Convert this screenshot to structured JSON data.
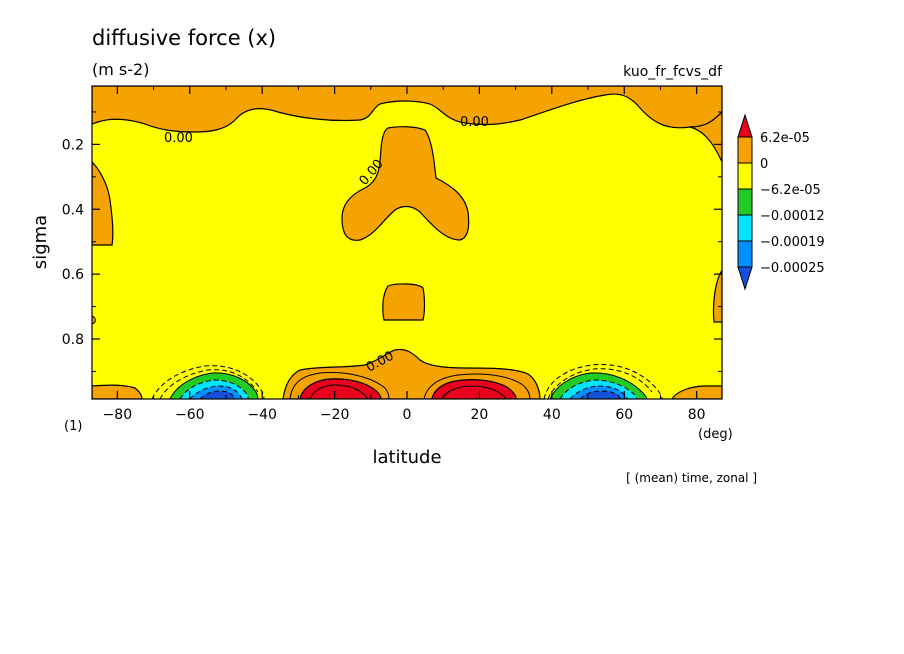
{
  "chart_data": {
    "type": "contour",
    "title": "diffusive force (x)",
    "units": "(m s-2)",
    "variable_id": "kuo_fr_fcvs_df",
    "xlabel": "latitude",
    "x_unit": "(deg)",
    "ylabel": "sigma",
    "panel_label": "(1)",
    "footer": "[ (mean) time, zonal ]",
    "xlim": [
      -87,
      87
    ],
    "ylim": [
      0.985,
      0.02
    ],
    "x_ticks": [
      -80,
      -60,
      -40,
      -20,
      0,
      20,
      40,
      60,
      80
    ],
    "y_ticks": [
      0.2,
      0.4,
      0.6,
      0.8
    ],
    "contour_label": "0.00",
    "legend": {
      "placement": "right",
      "labels": [
        "6.2e-05",
        "0",
        "−6.2e-05",
        "−0.00012",
        "−0.00019",
        "−0.00025"
      ],
      "colors": [
        "#e8001c",
        "#f5a300",
        "#ffff00",
        "#22cc22",
        "#00e5ff",
        "#0090ff",
        "#1450dc"
      ]
    },
    "regions": [
      {
        "name": "positive-top",
        "level": "0 to 6.2e-05",
        "color": "#f5a300"
      },
      {
        "name": "positive-center",
        "level": "0 to 6.2e-05",
        "color": "#f5a300"
      },
      {
        "name": "max-south",
        "level": "> 6.2e-05",
        "lat_center": -18,
        "sigma_center": 0.97,
        "color": "#e8001c"
      },
      {
        "name": "max-north",
        "level": "> 6.2e-05",
        "lat_center": 18,
        "sigma_center": 0.97,
        "color": "#e8001c"
      },
      {
        "name": "min-south",
        "level": "< -0.00025",
        "lat_center": -52,
        "sigma_center": 0.985,
        "color": "#1450dc"
      },
      {
        "name": "min-north",
        "level": "< -0.00025",
        "lat_center": 55,
        "sigma_center": 0.985,
        "color": "#1450dc"
      }
    ]
  }
}
